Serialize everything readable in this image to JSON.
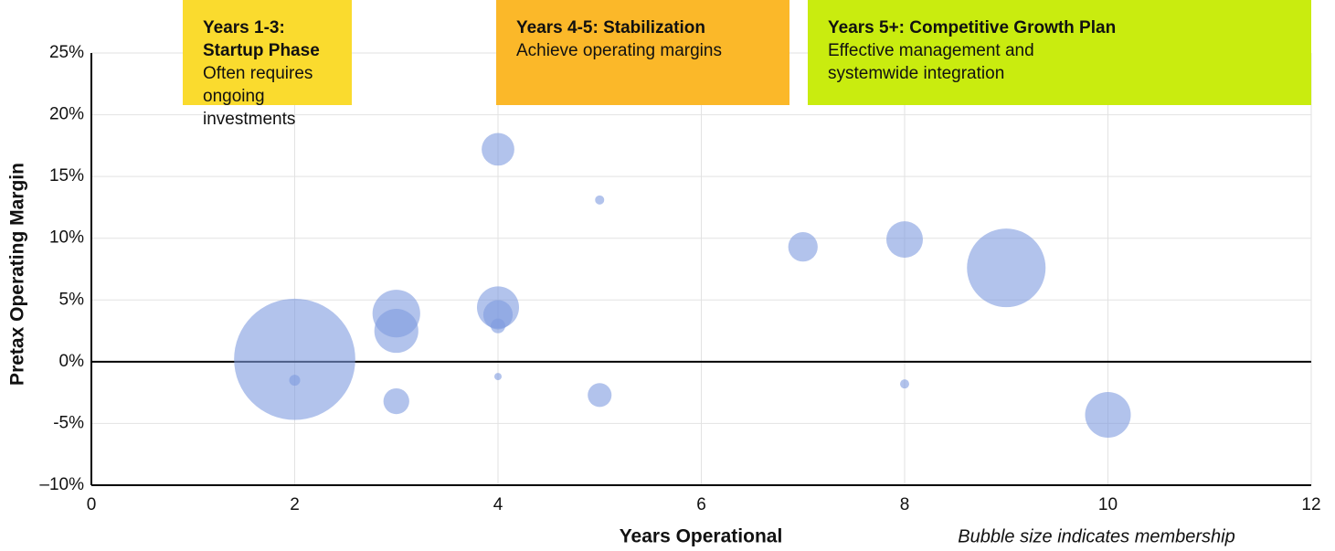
{
  "chart_data": {
    "type": "scatter",
    "x_label": "Years Operational",
    "y_label": "Pretax Operating Margin",
    "note": "Bubble size indicates membership",
    "annotations": [
      {
        "title": "Years 1-3: Startup Phase",
        "text": "Often requires ongoing investments",
        "color": "#fadb2e"
      },
      {
        "title": "Years 4-5: Stabilization",
        "text": "Achieve operating margins",
        "color": "#fbb829"
      },
      {
        "title": "Years 5+: Competitive Growth Plan",
        "text": "Effective management and systemwide integration",
        "color": "#c9ec0f"
      }
    ],
    "series": [
      {
        "color": "#7f9be0",
        "x": [
          2,
          2,
          3,
          3,
          3,
          4,
          4,
          4,
          4,
          4,
          5,
          5,
          7,
          8,
          8,
          9,
          10
        ],
        "values": [
          0.2,
          -1.5,
          3.9,
          2.5,
          -3.2,
          17.2,
          4.4,
          3.8,
          2.9,
          -1.2,
          13.1,
          -2.7,
          9.3,
          9.9,
          -1.8,
          7.6,
          -4.3
        ],
        "sizes": [
          4400,
          36,
          680,
          580,
          200,
          320,
          530,
          260,
          64,
          16,
          25,
          170,
          260,
          400,
          25,
          1850,
          625
        ]
      }
    ],
    "xlim": [
      0,
      12
    ],
    "xticks": [
      0,
      2,
      4,
      6,
      8,
      10,
      12
    ],
    "ylim": [
      -10,
      25
    ],
    "yticks": [
      {
        "value": -10,
        "label": "–10%"
      },
      {
        "value": -5,
        "label": "-5%"
      },
      {
        "value": 0,
        "label": "0%"
      },
      {
        "value": 5,
        "label": "5%"
      },
      {
        "value": 10,
        "label": "10%"
      },
      {
        "value": 15,
        "label": "15%"
      },
      {
        "value": 20,
        "label": "20%"
      },
      {
        "value": 25,
        "label": "25%"
      }
    ],
    "grid": true
  }
}
